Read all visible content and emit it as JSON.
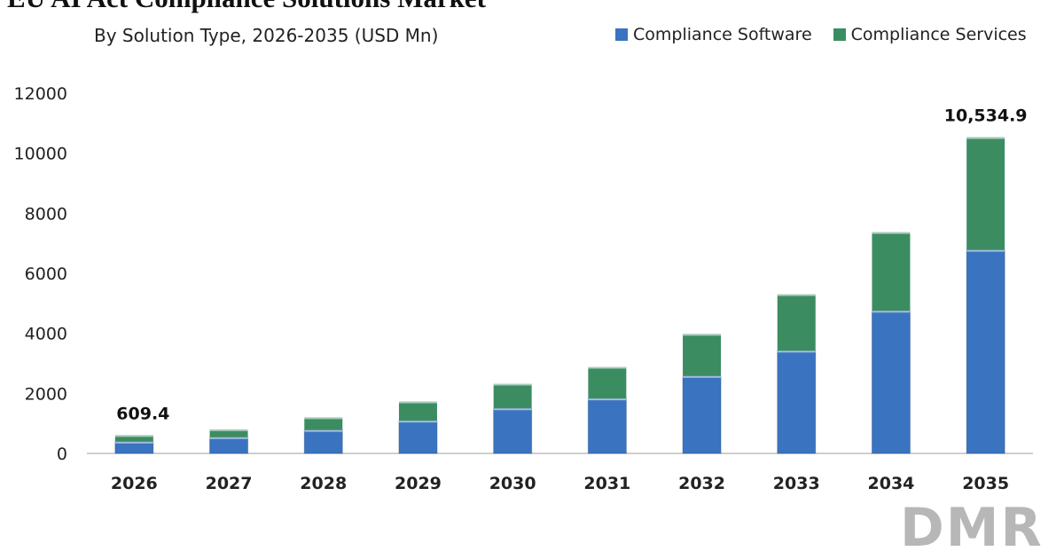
{
  "chart_data": {
    "type": "bar",
    "stacked": true,
    "title": "EU AI Act Compliance Solutions Market",
    "subtitle": "By Solution Type, 2026-2035 (USD Mn)",
    "categories": [
      "2026",
      "2027",
      "2028",
      "2029",
      "2030",
      "2031",
      "2032",
      "2033",
      "2034",
      "2035"
    ],
    "series": [
      {
        "name": "Compliance Software",
        "color": "#3a74c0",
        "values": [
          390,
          540,
          780,
          1090,
          1500,
          1830,
          2580,
          3420,
          4750,
          6780
        ]
      },
      {
        "name": "Compliance Services",
        "color": "#3c8c62",
        "values": [
          219.4,
          260,
          420,
          640,
          820,
          1050,
          1400,
          1880,
          2620,
          3754.9
        ]
      }
    ],
    "data_labels": [
      {
        "category": "2026",
        "text": "609.4"
      },
      {
        "category": "2035",
        "text": "10,534.9"
      }
    ],
    "yticks": [
      "0",
      "2000",
      "4000",
      "6000",
      "8000",
      "10000",
      "12000"
    ],
    "ylim": [
      0,
      12000
    ],
    "grid": false,
    "legend_position": "top-right"
  },
  "logo_text": "DMR"
}
